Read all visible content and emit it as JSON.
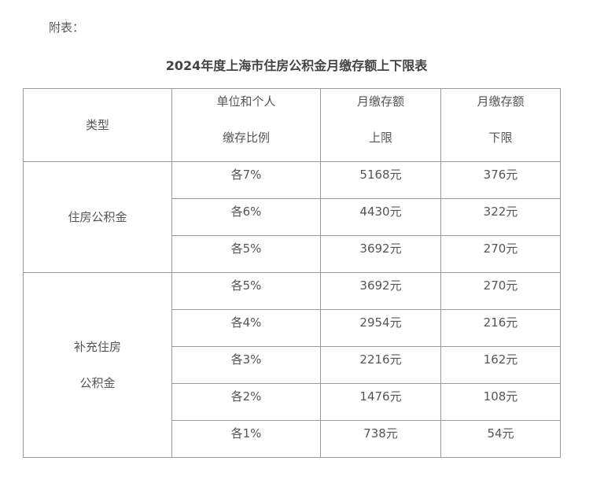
{
  "note": "附表：",
  "title": "2024年度上海市住房公积金月缴存额上下限表",
  "headers": {
    "type": "类型",
    "ratio_1": "单位和个人",
    "ratio_2": "缴存比例",
    "upper_1": "月缴存额",
    "upper_2": "上限",
    "lower_1": "月缴存额",
    "lower_2": "下限"
  },
  "groups": [
    {
      "label": "住房公积金",
      "rows": [
        {
          "ratio": "各7%",
          "upper": "5168元",
          "lower": "376元"
        },
        {
          "ratio": "各6%",
          "upper": "4430元",
          "lower": "322元"
        },
        {
          "ratio": "各5%",
          "upper": "3692元",
          "lower": "270元"
        }
      ]
    },
    {
      "label_1": "补充住房",
      "label_2": "公积金",
      "rows": [
        {
          "ratio": "各5%",
          "upper": "3692元",
          "lower": "270元"
        },
        {
          "ratio": "各4%",
          "upper": "2954元",
          "lower": "216元"
        },
        {
          "ratio": "各3%",
          "upper": "2216元",
          "lower": "162元"
        },
        {
          "ratio": "各2%",
          "upper": "1476元",
          "lower": "108元"
        },
        {
          "ratio": "各1%",
          "upper": "738元",
          "lower": "54元"
        }
      ]
    }
  ]
}
